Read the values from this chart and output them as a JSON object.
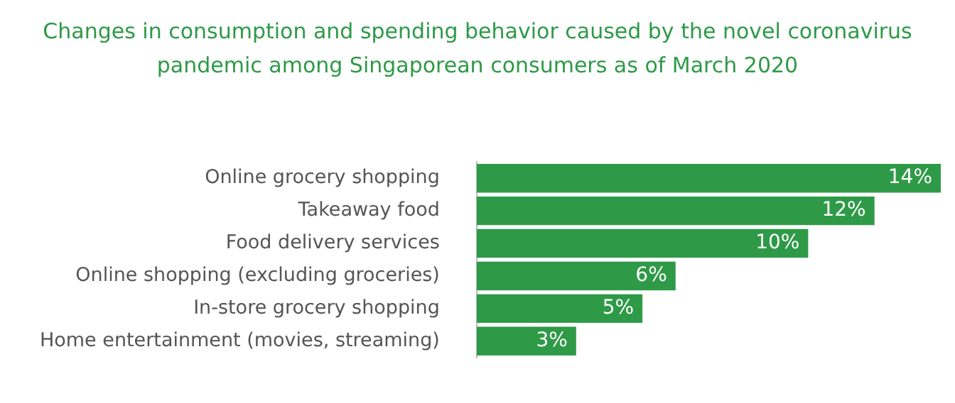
{
  "chart_data": {
    "type": "bar",
    "orientation": "horizontal",
    "title": "Changes in consumption and spending behavior caused by the novel coronavirus pandemic among Singaporean consumers as of March 2020",
    "categories": [
      "Online grocery shopping",
      "Takeaway food",
      "Food delivery services",
      "Online shopping (excluding groceries)",
      "In-store grocery shopping",
      "Home entertainment (movies, streaming)"
    ],
    "values": [
      14,
      12,
      10,
      6,
      5,
      3
    ],
    "value_labels": [
      "14%",
      "12%",
      "10%",
      "6%",
      "5%",
      "3%"
    ],
    "color": "#2e9a47",
    "xlim": [
      0,
      14
    ]
  }
}
